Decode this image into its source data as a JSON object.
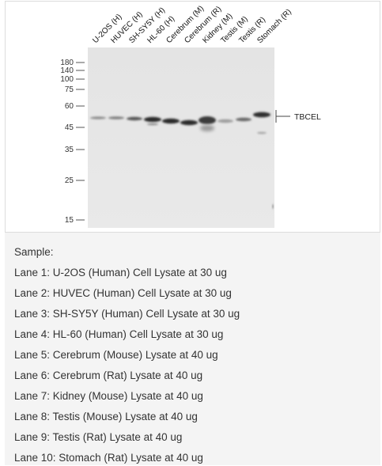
{
  "blot": {
    "lanes": [
      "U-2OS (H)",
      "HUVEC (H)",
      "SH-SY5Y (H)",
      "HL-60 (H)",
      "Cerebrum (M)",
      "Cerebrum (R)",
      "Kidney (M)",
      "Testis (M)",
      "Testis (R)",
      "Stomach (R)"
    ],
    "markers": [
      "180",
      "140",
      "100",
      "75",
      "60",
      "45",
      "35",
      "25",
      "15"
    ],
    "band_label": "TBCEL"
  },
  "caption": {
    "heading": "Sample:",
    "lines": [
      "Lane 1: U-2OS (Human) Cell Lysate at 30 ug",
      "Lane 2: HUVEC (Human) Cell Lysate at 30 ug",
      "Lane 3: SH-SY5Y (Human) Cell Lysate at 30 ug",
      "Lane 4: HL-60 (Human) Cell Lysate at 30 ug",
      "Lane 5: Cerebrum (Mouse) Lysate at 40 ug",
      "Lane 6: Cerebrum (Rat) Lysate at 40 ug",
      "Lane 7: Kidney (Mouse) Lysate at 40 ug",
      "Lane 8: Testis (Mouse) Lysate at 40 ug",
      "Lane 9: Testis (Rat) Lysate at 40 ug",
      "Lane 10: Stomach (Rat) Lysate at 40 ug"
    ]
  }
}
